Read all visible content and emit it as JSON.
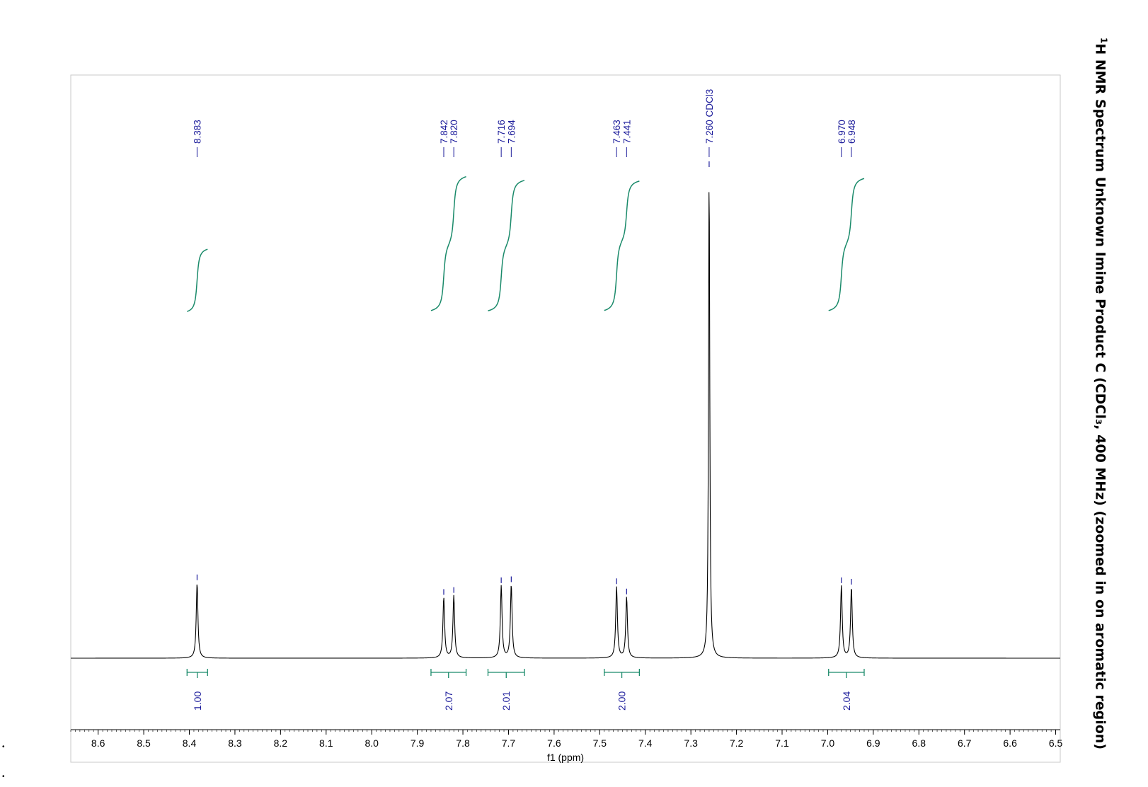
{
  "title": {
    "nucleus_mass": "1",
    "text": "H NMR Spectrum Unknown Imine Product C (CDCl₃, 400 MHz) (zoomed in on aromatic region)"
  },
  "chart_data": {
    "type": "line",
    "xlabel": "f1 (ppm)",
    "xlim": [
      8.66,
      6.49
    ],
    "x_ticks": [
      8.6,
      8.5,
      8.4,
      8.3,
      8.2,
      8.1,
      8.0,
      7.9,
      7.8,
      7.7,
      7.6,
      7.5,
      7.4,
      7.3,
      7.2,
      7.1,
      7.0,
      6.9,
      6.8,
      6.7,
      6.6,
      6.5
    ],
    "x_tick_labels": [
      "8.6",
      "8.5",
      "8.4",
      "8.3",
      "8.2",
      "8.1",
      "8.0",
      "7.9",
      "7.8",
      "7.7",
      "7.6",
      "7.5",
      "7.4",
      "7.3",
      "7.2",
      "7.1",
      "7.0",
      "6.9",
      "6.8",
      "6.7",
      "6.6",
      "6.5"
    ],
    "peaks": [
      {
        "ppm": 8.383,
        "label": "8.383",
        "height": 0.154
      },
      {
        "ppm": 7.842,
        "label": "7.842",
        "height": 0.124
      },
      {
        "ppm": 7.82,
        "label": "7.820",
        "height": 0.128
      },
      {
        "ppm": 7.716,
        "label": "7.716",
        "height": 0.148
      },
      {
        "ppm": 7.694,
        "label": "7.694",
        "height": 0.15
      },
      {
        "ppm": 7.463,
        "label": "7.463",
        "height": 0.146
      },
      {
        "ppm": 7.441,
        "label": "7.441",
        "height": 0.125
      },
      {
        "ppm": 7.26,
        "label": "7.260 CDCl3",
        "height": 1.0
      },
      {
        "ppm": 6.97,
        "label": "6.970",
        "height": 0.148
      },
      {
        "ppm": 6.948,
        "label": "6.948",
        "height": 0.145
      }
    ],
    "integrals": [
      {
        "from": 8.405,
        "to": 8.36,
        "value": "1.00"
      },
      {
        "from": 7.87,
        "to": 7.793,
        "value": "2.07"
      },
      {
        "from": 7.745,
        "to": 7.665,
        "value": "2.01"
      },
      {
        "from": 7.49,
        "to": 7.413,
        "value": "2.00"
      },
      {
        "from": 6.998,
        "to": 6.92,
        "value": "2.04"
      }
    ]
  },
  "colors": {
    "spectrum": "#000000",
    "peak_label": "#1a1a9a",
    "integral": "#1a8a6a",
    "frame": "#c8c8c8"
  }
}
